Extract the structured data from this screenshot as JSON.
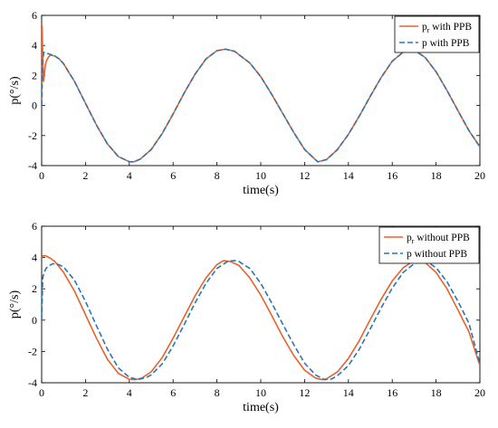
{
  "chart_data": [
    {
      "type": "line",
      "xlabel": "time(s)",
      "ylabel": "p(°/s)",
      "xlim": [
        0,
        20
      ],
      "ylim": [
        -4,
        6
      ],
      "xticks": [
        "0",
        "2",
        "4",
        "6",
        "8",
        "10",
        "12",
        "14",
        "16",
        "18",
        "20"
      ],
      "yticks": [
        "6",
        "4",
        "2",
        "0",
        "-2",
        "-4"
      ],
      "grid": false,
      "legend_position": "top-right",
      "series": [
        {
          "name": "p_r with PPB",
          "legend_main": "p",
          "legend_sub": "r",
          "legend_rest": " with PPB",
          "color": "#e8622a",
          "dash": "solid",
          "x": [
            0.0,
            0.02,
            0.05,
            0.08,
            0.12,
            0.16,
            0.2,
            0.3,
            0.4,
            0.6,
            0.8,
            1.0,
            1.5,
            2.0,
            2.5,
            3.0,
            3.5,
            4.0,
            4.2,
            4.5,
            5.0,
            5.5,
            6.0,
            6.5,
            7.0,
            7.5,
            8.0,
            8.4,
            8.8,
            9.5,
            10.0,
            10.5,
            11.0,
            11.5,
            12.0,
            12.6,
            13.0,
            13.5,
            14.0,
            14.5,
            15.0,
            15.5,
            16.0,
            16.5,
            16.8,
            17.0,
            17.5,
            18.0,
            18.5,
            19.0,
            19.5,
            20.0
          ],
          "y": [
            0.0,
            5.3,
            3.5,
            1.6,
            2.0,
            2.6,
            2.9,
            3.2,
            3.35,
            3.3,
            3.1,
            2.78,
            1.6,
            0.15,
            -1.3,
            -2.55,
            -3.4,
            -3.74,
            -3.75,
            -3.57,
            -2.93,
            -1.87,
            -0.56,
            0.82,
            2.08,
            3.1,
            3.65,
            3.75,
            3.61,
            2.83,
            1.92,
            0.74,
            -0.52,
            -1.78,
            -2.93,
            -3.75,
            -3.6,
            -2.93,
            -1.92,
            -0.7,
            0.62,
            1.88,
            2.95,
            3.55,
            3.75,
            3.7,
            3.2,
            2.25,
            1.0,
            -0.35,
            -1.67,
            -2.75
          ]
        },
        {
          "name": "p with PPB",
          "legend_main": "p",
          "legend_sub": "",
          "legend_rest": " with PPB",
          "color": "#2a76b8",
          "dash": "dashed",
          "x": [
            0.0,
            0.05,
            0.1,
            0.2,
            0.3,
            0.4,
            0.6,
            0.8,
            1.0,
            1.5,
            2.0,
            2.5,
            3.0,
            3.5,
            4.0,
            4.2,
            4.5,
            5.0,
            5.5,
            6.0,
            6.5,
            7.0,
            7.5,
            8.0,
            8.4,
            8.8,
            9.5,
            10.0,
            10.5,
            11.0,
            11.5,
            12.0,
            12.6,
            13.0,
            13.5,
            14.0,
            14.5,
            15.0,
            15.5,
            16.0,
            16.5,
            16.8,
            17.0,
            17.5,
            18.0,
            18.5,
            19.0,
            19.5,
            20.0
          ],
          "y": [
            0.0,
            3.0,
            3.55,
            3.5,
            3.45,
            3.4,
            3.3,
            3.1,
            2.78,
            1.6,
            0.15,
            -1.3,
            -2.55,
            -3.4,
            -3.74,
            -3.75,
            -3.57,
            -2.93,
            -1.87,
            -0.56,
            0.82,
            2.08,
            3.1,
            3.65,
            3.75,
            3.61,
            2.83,
            1.92,
            0.74,
            -0.52,
            -1.78,
            -2.93,
            -3.75,
            -3.6,
            -2.93,
            -1.92,
            -0.7,
            0.62,
            1.88,
            2.95,
            3.55,
            3.75,
            3.7,
            3.2,
            2.25,
            1.0,
            -0.35,
            -1.67,
            -2.75
          ]
        }
      ]
    },
    {
      "type": "line",
      "xlabel": "time(s)",
      "ylabel": "p(°/s)",
      "xlim": [
        0,
        20
      ],
      "ylim": [
        -4,
        6
      ],
      "xticks": [
        "0",
        "2",
        "4",
        "6",
        "8",
        "10",
        "12",
        "14",
        "16",
        "18",
        "20"
      ],
      "yticks": [
        "6",
        "4",
        "2",
        "0",
        "-2",
        "-4"
      ],
      "grid": false,
      "legend_position": "top-right",
      "series": [
        {
          "name": "p_r without PPB",
          "legend_main": "p",
          "legend_sub": "r",
          "legend_rest": " without PPB",
          "color": "#e8622a",
          "dash": "solid",
          "x": [
            0.0,
            0.05,
            0.1,
            0.2,
            0.4,
            0.6,
            1.0,
            1.5,
            2.0,
            2.5,
            3.0,
            3.5,
            4.0,
            4.3,
            4.6,
            5.0,
            5.5,
            6.0,
            6.5,
            7.0,
            7.5,
            8.0,
            8.3,
            8.6,
            9.0,
            9.5,
            10.0,
            10.5,
            11.0,
            11.5,
            12.0,
            12.5,
            12.8,
            13.0,
            13.5,
            14.0,
            14.5,
            15.0,
            15.5,
            16.0,
            16.5,
            16.9,
            17.2,
            17.5,
            18.0,
            18.5,
            19.0,
            19.5,
            20.0
          ],
          "y": [
            4.0,
            4.1,
            4.12,
            4.1,
            3.95,
            3.75,
            3.05,
            1.85,
            0.35,
            -1.15,
            -2.5,
            -3.4,
            -3.78,
            -3.8,
            -3.68,
            -3.3,
            -2.4,
            -1.15,
            0.2,
            1.55,
            2.7,
            3.55,
            3.8,
            3.75,
            3.5,
            2.7,
            1.6,
            0.3,
            -1.05,
            -2.25,
            -3.2,
            -3.7,
            -3.8,
            -3.75,
            -3.3,
            -2.45,
            -1.3,
            0.05,
            1.35,
            2.5,
            3.35,
            3.72,
            3.8,
            3.68,
            3.05,
            2.0,
            0.65,
            -0.75,
            -2.9
          ]
        },
        {
          "name": "p without PPB",
          "legend_main": "p",
          "legend_sub": "",
          "legend_rest": " without PPB",
          "color": "#2a76b8",
          "dash": "dashed",
          "x": [
            0.0,
            0.05,
            0.1,
            0.2,
            0.3,
            0.5,
            0.7,
            1.0,
            1.5,
            2.0,
            2.5,
            3.0,
            3.5,
            4.0,
            4.4,
            4.8,
            5.0,
            5.5,
            6.0,
            6.5,
            7.0,
            7.5,
            8.0,
            8.5,
            8.8,
            9.0,
            9.5,
            10.0,
            10.5,
            11.0,
            11.5,
            12.0,
            12.5,
            12.9,
            13.2,
            13.5,
            14.0,
            14.5,
            15.0,
            15.5,
            16.0,
            16.5,
            17.0,
            17.3,
            17.6,
            18.0,
            18.5,
            19.0,
            19.5,
            20.0
          ],
          "y": [
            0.0,
            2.7,
            3.0,
            3.3,
            3.45,
            3.6,
            3.6,
            3.4,
            2.55,
            1.2,
            -0.35,
            -1.85,
            -3.05,
            -3.65,
            -3.8,
            -3.65,
            -3.5,
            -2.8,
            -1.65,
            -0.3,
            1.1,
            2.35,
            3.3,
            3.76,
            3.8,
            3.75,
            3.3,
            2.35,
            1.1,
            -0.25,
            -1.55,
            -2.75,
            -3.5,
            -3.8,
            -3.78,
            -3.55,
            -2.9,
            -1.85,
            -0.55,
            0.8,
            2.05,
            3.05,
            3.6,
            3.8,
            3.72,
            3.35,
            2.45,
            1.2,
            -0.2,
            -2.8
          ]
        }
      ]
    }
  ]
}
